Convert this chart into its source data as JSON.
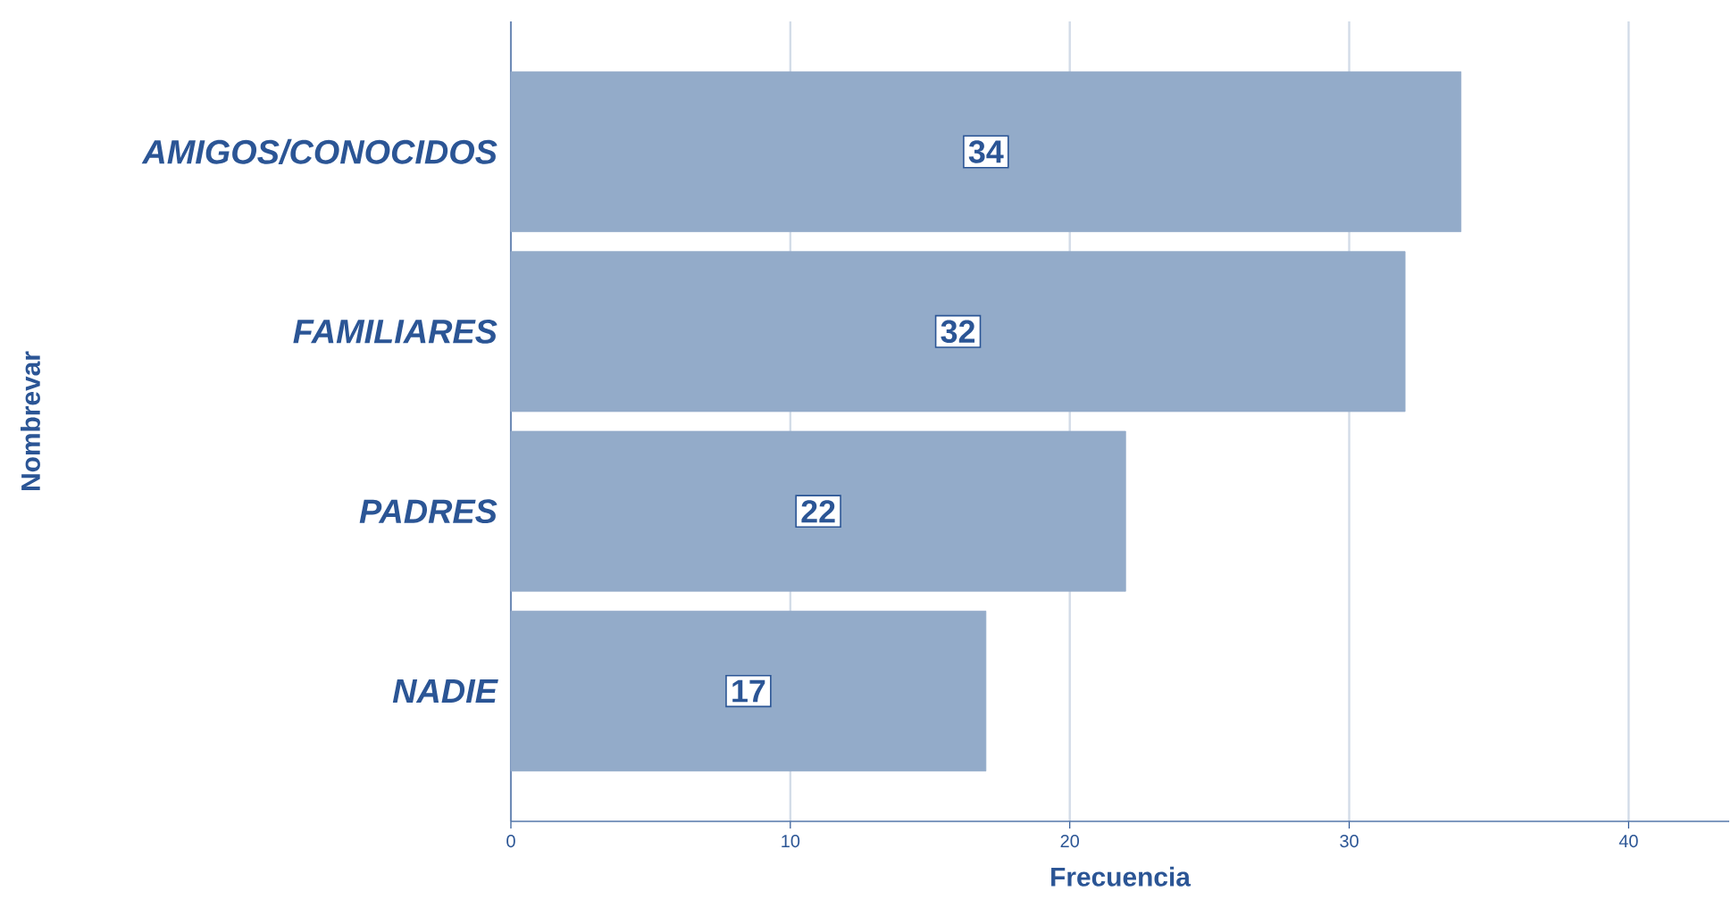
{
  "chart_data": {
    "type": "bar",
    "orientation": "horizontal",
    "xlabel": "Frecuencia",
    "ylabel": "Nombrevar",
    "categories": [
      "AMIGOS/CONOCIDOS",
      "FAMILIARES",
      "PADRES",
      "NADIE"
    ],
    "values": [
      34,
      32,
      22,
      17
    ],
    "color": "#93abc9",
    "xlim": [
      0,
      43.6
    ],
    "xticks": [
      0,
      10,
      20,
      30,
      40
    ],
    "grid": "x",
    "data_labels": true
  }
}
